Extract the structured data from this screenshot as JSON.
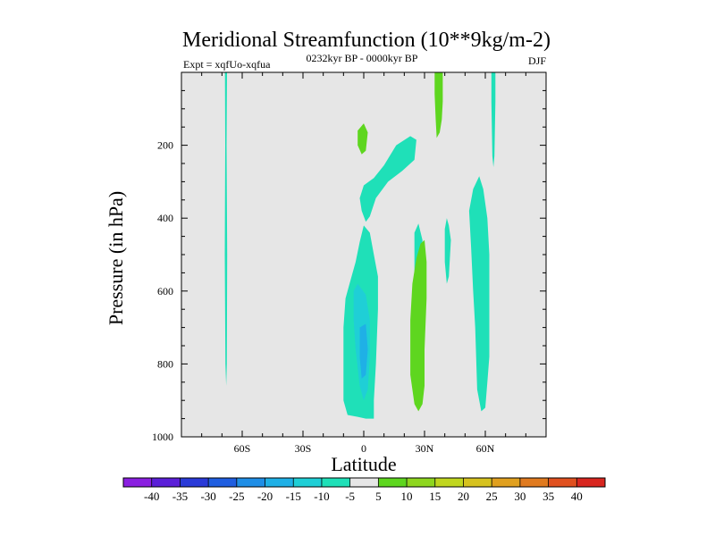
{
  "chart_data": {
    "type": "heatmap",
    "title": "Meridional Streamfunction (10**9kg/m-2)",
    "subtitle_left": "Expt = xqfUo-xqfua",
    "subtitle_center": "0232kyr BP - 0000kyr BP",
    "subtitle_right": "DJF",
    "xlabel": "Latitude",
    "ylabel": "Pressure (in hPa)",
    "xlim": [
      -90,
      90
    ],
    "ylim": [
      1000,
      0
    ],
    "x_ticks": [
      {
        "value": -60,
        "label": "60S"
      },
      {
        "value": -30,
        "label": "30S"
      },
      {
        "value": 0,
        "label": "0"
      },
      {
        "value": 30,
        "label": "30N"
      },
      {
        "value": 60,
        "label": "60N"
      }
    ],
    "y_ticks": [
      {
        "value": 200,
        "label": "200"
      },
      {
        "value": 400,
        "label": "400"
      },
      {
        "value": 600,
        "label": "600"
      },
      {
        "value": 800,
        "label": "800"
      },
      {
        "value": 1000,
        "label": "1000"
      }
    ],
    "background_color": "#e6e6e6",
    "colorbar": {
      "labels": [
        "-40",
        "-35",
        "-30",
        "-25",
        "-20",
        "-15",
        "-10",
        "-5",
        "5",
        "10",
        "15",
        "20",
        "25",
        "30",
        "35",
        "40"
      ],
      "colors": [
        "#8a1fe0",
        "#5b1fd8",
        "#2a3ad8",
        "#1f5ee0",
        "#1f8ee6",
        "#1fb0e6",
        "#1fcfd6",
        "#1fe0b8",
        "#e6e6e6",
        "#5ed61f",
        "#8ed61f",
        "#c0d61f",
        "#d6c21f",
        "#e0a01f",
        "#e07a1f",
        "#e0501f",
        "#d8261f"
      ]
    },
    "regions": [
      {
        "label": "-5 to -10",
        "color": "#1fe0b8",
        "points": [
          [
            -68.5,
            0
          ],
          [
            -67.5,
            0
          ],
          [
            -67.7,
            200
          ],
          [
            -67.4,
            500
          ],
          [
            -67.6,
            800
          ],
          [
            -67.9,
            860
          ],
          [
            -68.3,
            800
          ],
          [
            -68.6,
            500
          ],
          [
            -68.4,
            200
          ]
        ]
      },
      {
        "label": "5 to 10",
        "color": "#5ed61f",
        "points": [
          [
            -3,
            160
          ],
          [
            0,
            140
          ],
          [
            2,
            165
          ],
          [
            1,
            215
          ],
          [
            -1,
            225
          ],
          [
            -3,
            200
          ]
        ]
      },
      {
        "label": "-5 to -10",
        "color": "#1fe0b8",
        "points": [
          [
            0,
            310
          ],
          [
            5,
            290
          ],
          [
            10,
            255
          ],
          [
            16,
            200
          ],
          [
            23,
            175
          ],
          [
            26,
            185
          ],
          [
            25,
            240
          ],
          [
            19,
            270
          ],
          [
            12,
            300
          ],
          [
            6,
            345
          ],
          [
            3,
            395
          ],
          [
            1,
            410
          ],
          [
            -1,
            380
          ],
          [
            -2,
            345
          ]
        ]
      },
      {
        "label": "-5 to -10",
        "color": "#1fe0b8",
        "points": [
          [
            -4,
            520
          ],
          [
            -2,
            465
          ],
          [
            0,
            420
          ],
          [
            3,
            440
          ],
          [
            5,
            500
          ],
          [
            7,
            560
          ],
          [
            7,
            650
          ],
          [
            6,
            800
          ],
          [
            5,
            900
          ],
          [
            5,
            950
          ],
          [
            1,
            950
          ],
          [
            -3,
            945
          ],
          [
            -8,
            940
          ],
          [
            -10,
            900
          ],
          [
            -10,
            700
          ],
          [
            -9,
            620
          ],
          [
            -7,
            580
          ]
        ]
      },
      {
        "label": "-10 to -15",
        "color": "#1fcfd6",
        "points": [
          [
            -5,
            600
          ],
          [
            -3,
            580
          ],
          [
            1,
            610
          ],
          [
            3,
            680
          ],
          [
            3,
            780
          ],
          [
            2,
            870
          ],
          [
            0,
            900
          ],
          [
            -2,
            860
          ],
          [
            -4,
            760
          ],
          [
            -5,
            680
          ]
        ]
      },
      {
        "label": "-15 to -20",
        "color": "#1fb0e6",
        "points": [
          [
            -2,
            700
          ],
          [
            1,
            690
          ],
          [
            2,
            760
          ],
          [
            1,
            830
          ],
          [
            -1,
            840
          ],
          [
            -2,
            780
          ]
        ]
      },
      {
        "label": "-5 to -10",
        "color": "#1fe0b8",
        "points": [
          [
            25,
            440
          ],
          [
            27,
            415
          ],
          [
            29,
            460
          ],
          [
            29,
            560
          ],
          [
            27,
            600
          ],
          [
            25,
            560
          ]
        ]
      },
      {
        "label": "5 to 10",
        "color": "#5ed61f",
        "points": [
          [
            23,
            680
          ],
          [
            24,
            580
          ],
          [
            26,
            510
          ],
          [
            28,
            470
          ],
          [
            30,
            460
          ],
          [
            31,
            520
          ],
          [
            31,
            620
          ],
          [
            30,
            760
          ],
          [
            30,
            860
          ],
          [
            29,
            910
          ],
          [
            27,
            930
          ],
          [
            25,
            910
          ],
          [
            23,
            830
          ]
        ]
      },
      {
        "label": "5 to 10",
        "color": "#5ed61f",
        "points": [
          [
            35,
            0
          ],
          [
            39,
            0
          ],
          [
            39,
            80
          ],
          [
            38.5,
            130
          ],
          [
            37.5,
            165
          ],
          [
            36,
            180
          ],
          [
            35.5,
            130
          ],
          [
            35,
            60
          ]
        ]
      },
      {
        "label": "-5 to -10",
        "color": "#1fe0b8",
        "points": [
          [
            40,
            430
          ],
          [
            41,
            400
          ],
          [
            42,
            420
          ],
          [
            43,
            460
          ],
          [
            42,
            560
          ],
          [
            41,
            580
          ],
          [
            40,
            520
          ]
        ]
      },
      {
        "label": "-5 to -10",
        "color": "#1fe0b8",
        "points": [
          [
            52,
            380
          ],
          [
            54,
            320
          ],
          [
            57,
            285
          ],
          [
            59,
            320
          ],
          [
            61,
            400
          ],
          [
            62,
            500
          ],
          [
            62,
            650
          ],
          [
            62,
            780
          ],
          [
            61,
            850
          ],
          [
            60,
            920
          ],
          [
            58,
            930
          ],
          [
            56,
            870
          ],
          [
            55,
            700
          ],
          [
            54,
            600
          ],
          [
            53,
            480
          ]
        ]
      },
      {
        "label": "-5 to -10",
        "color": "#1fe0b8",
        "points": [
          [
            63,
            0
          ],
          [
            65,
            0
          ],
          [
            65,
            80
          ],
          [
            64.5,
            230
          ],
          [
            64,
            260
          ],
          [
            63.5,
            230
          ],
          [
            63,
            80
          ]
        ]
      }
    ]
  }
}
